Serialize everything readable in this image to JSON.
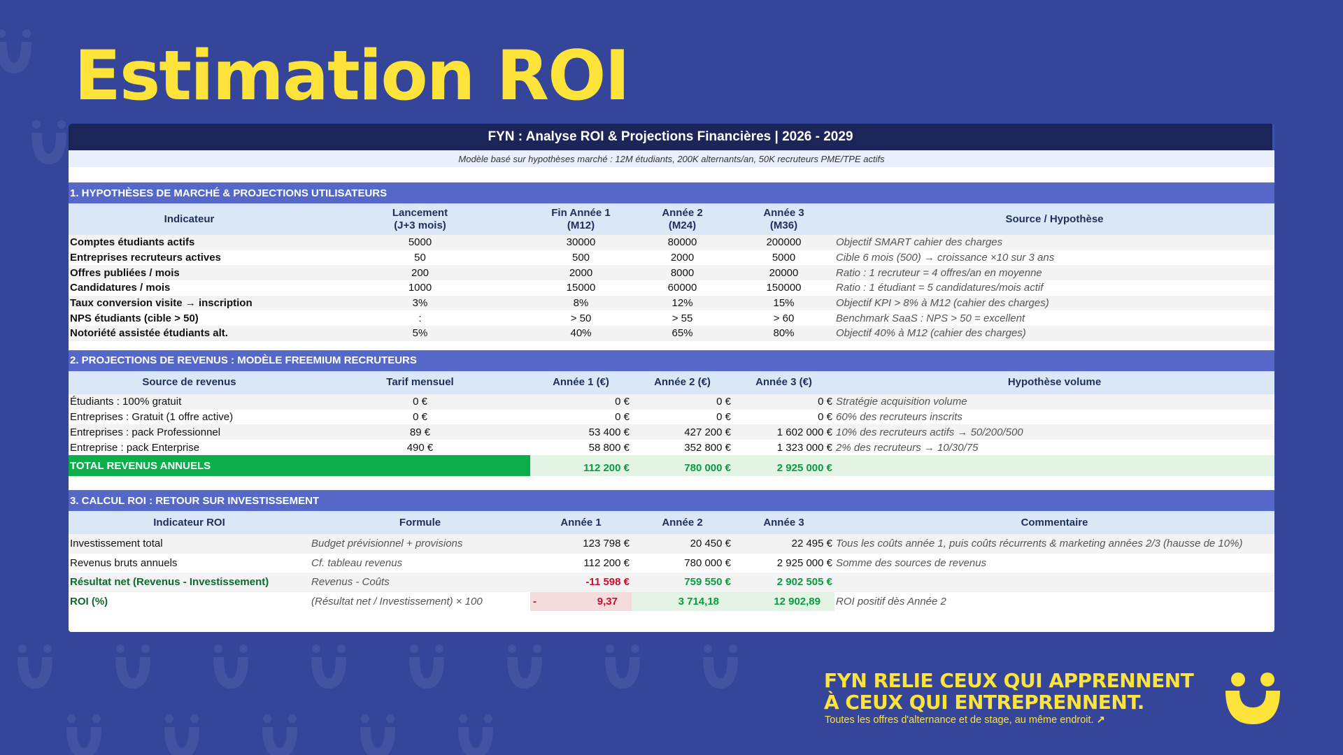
{
  "title": "Estimation ROI",
  "sheet": {
    "header": "FYN : Analyse ROI & Projections Financières | 2026 - 2029",
    "subtitle": "Modèle basé sur hypothèses marché : 12M étudiants, 200K alternants/an, 50K recruteurs PME/TPE actifs"
  },
  "section1": {
    "title": "1. HYPOTHÈSES DE MARCHÉ & PROJECTIONS UTILISATEURS",
    "headers": [
      "Indicateur",
      "Lancement\n(J+3 mois)",
      "Fin Année 1\n(M12)",
      "Année 2\n(M24)",
      "Année 3\n(M36)",
      "Source / Hypothèse"
    ],
    "rows": [
      [
        "Comptes étudiants actifs",
        "5000",
        "30000",
        "80000",
        "200000",
        "Objectif SMART cahier des charges"
      ],
      [
        "Entreprises recruteurs actives",
        "50",
        "500",
        "2000",
        "5000",
        "Cible 6 mois (500) → croissance ×10 sur 3 ans"
      ],
      [
        "Offres publiées / mois",
        "200",
        "2000",
        "8000",
        "20000",
        "Ratio : 1 recruteur = 4 offres/an en moyenne"
      ],
      [
        "Candidatures / mois",
        "1000",
        "15000",
        "60000",
        "150000",
        "Ratio : 1 étudiant = 5 candidatures/mois actif"
      ],
      [
        "Taux conversion visite → inscription",
        "3%",
        "8%",
        "12%",
        "15%",
        "Objectif KPI > 8% à M12 (cahier des charges)"
      ],
      [
        "NPS étudiants (cible > 50)",
        ":",
        "> 50",
        "> 55",
        "> 60",
        "Benchmark SaaS : NPS > 50 = excellent"
      ],
      [
        "Notoriété assistée étudiants alt.",
        "5%",
        "40%",
        "65%",
        "80%",
        "Objectif 40% à M12 (cahier des charges)"
      ]
    ]
  },
  "section2": {
    "title": "2. PROJECTIONS DE REVENUS : MODÈLE FREEMIUM RECRUTEURS",
    "headers": [
      "Source de revenus",
      "Tarif mensuel",
      "Année 1 (€)",
      "Année 2 (€)",
      "Année 3 (€)",
      "Hypothèse volume"
    ],
    "rows": [
      [
        "Étudiants : 100% gratuit",
        "0 €",
        "0 €",
        "0 €",
        "0 €",
        "Stratégie acquisition volume"
      ],
      [
        "Entreprises : Gratuit (1 offre active)",
        "0 €",
        "0 €",
        "0 €",
        "0 €",
        "60% des recruteurs inscrits"
      ],
      [
        "Entreprises : pack Professionnel",
        "89 €",
        "53 400 €",
        "427 200 €",
        "1 602 000 €",
        "10% des recruteurs actifs → 50/200/500"
      ],
      [
        "Entreprise : pack Enterprise",
        "490 €",
        "58 800 €",
        "352 800 €",
        "1 323 000 €",
        "2% des recruteurs → 10/30/75"
      ]
    ],
    "total": {
      "label": "TOTAL REVENUS ANNUELS",
      "values": [
        "112 200 €",
        "780 000 €",
        "2 925 000 €"
      ]
    }
  },
  "section3": {
    "title": "3. CALCUL ROI : RETOUR SUR INVESTISSEMENT",
    "headers": [
      "Indicateur ROI",
      "Formule",
      "Année 1",
      "Année 2",
      "Année 3",
      "Commentaire"
    ],
    "rows": [
      [
        "Investissement total",
        "Budget prévisionnel + provisions",
        "123 798 €",
        "20 450 €",
        "22 495 €",
        "Tous les coûts année 1, puis coûts récurrents & marketing années 2/3 (hausse de 10%)"
      ],
      [
        "Revenus bruts annuels",
        "Cf. tableau revenus",
        "112 200 €",
        "780 000 €",
        "2 925 000 €",
        "Somme des  sources de revenus"
      ],
      [
        "Résultat net (Revenus - Investissement)",
        "Revenus - Coûts",
        "-11 598 €",
        "759 550 €",
        "2 902 505 €",
        ""
      ],
      [
        "ROI (%)",
        "(Résultat net / Investissement) × 100",
        "9,37",
        "3 714,18",
        "12 902,89",
        "ROI positif dès Année 2"
      ]
    ],
    "roi_sign": "-"
  },
  "footer": {
    "line1_part1": "FYN RELIE CEUX QUI ",
    "line1_part2": "APPRENNENT",
    "line2": "À CEUX QUI ENTREPRENNENT.",
    "sub": "Toutes les offres d'alternance et de stage, au même endroit.",
    "sub_arrow": "↗"
  },
  "colors": {
    "background": "#34459a",
    "title_yellow": "#fde33a",
    "header_navy": "#1b2559",
    "section_blue": "#5568c8",
    "table_header": "#dae7f6",
    "total_green": "#0bae4a",
    "negative_red": "#c8102e"
  }
}
